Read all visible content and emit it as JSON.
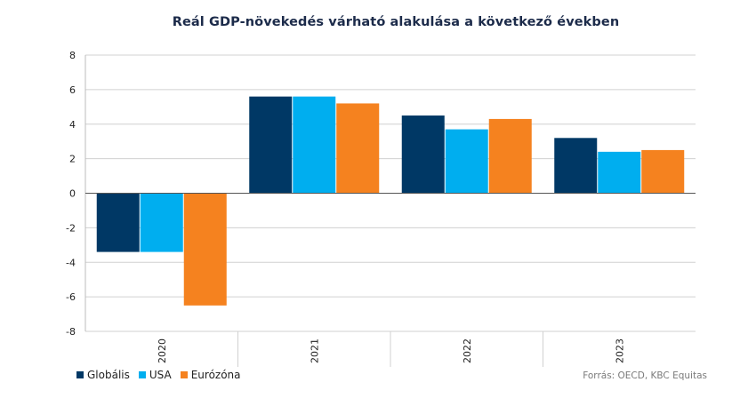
{
  "chart_data": {
    "type": "bar",
    "title": "Reál GDP-növekedés várható alakulása a következő években",
    "categories": [
      "2020",
      "2021",
      "2022",
      "2023"
    ],
    "series": [
      {
        "name": "Globális",
        "color": "#003865",
        "values": [
          -3.4,
          5.6,
          4.5,
          3.2
        ]
      },
      {
        "name": "USA",
        "color": "#00AEEF",
        "values": [
          -3.4,
          5.6,
          3.7,
          2.4
        ]
      },
      {
        "name": "Eurózóna",
        "color": "#F5821F",
        "values": [
          -6.5,
          5.2,
          4.3,
          2.5
        ]
      }
    ],
    "yticks": [
      "8",
      "6",
      "4",
      "2",
      "0",
      "-2",
      "-4",
      "-6",
      "-8"
    ],
    "ylim": [
      -8,
      8
    ],
    "grid": true,
    "legend_position": "bottom-left",
    "source": "Forrás: OECD, KBC Equitas"
  }
}
